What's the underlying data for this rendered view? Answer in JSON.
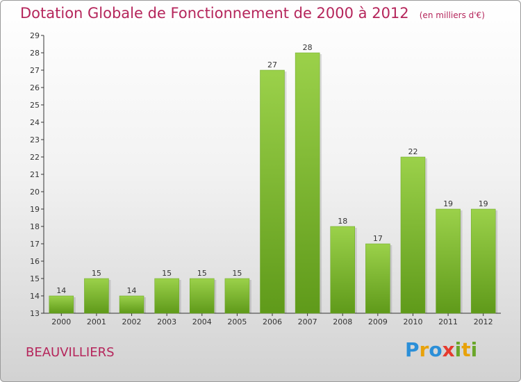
{
  "chart_data": {
    "type": "bar",
    "title": "Dotation Globale de Fonctionnement de 2000 à 2012",
    "subtitle": "(en milliers d'€)",
    "categories": [
      "2000",
      "2001",
      "2002",
      "2003",
      "2004",
      "2005",
      "2006",
      "2007",
      "2008",
      "2009",
      "2010",
      "2011",
      "2012"
    ],
    "values": [
      14,
      15,
      14,
      15,
      15,
      15,
      27,
      28,
      18,
      17,
      22,
      19,
      19
    ],
    "ylim": [
      13,
      29
    ],
    "yticks": [
      13,
      14,
      15,
      16,
      17,
      18,
      19,
      20,
      21,
      22,
      23,
      24,
      25,
      26,
      27,
      28,
      29
    ],
    "xlabel": "",
    "ylabel": "",
    "grid": false,
    "bar_color": "#7fbf2e"
  },
  "footer": {
    "commune": "BEAUVILLIERS",
    "logo_letters": [
      "P",
      "r",
      "o",
      "x",
      "i",
      "t",
      "i"
    ]
  },
  "colors": {
    "title": "#b5255b",
    "bar_light": "#9bd14a",
    "bar_dark": "#5f9a1a"
  }
}
